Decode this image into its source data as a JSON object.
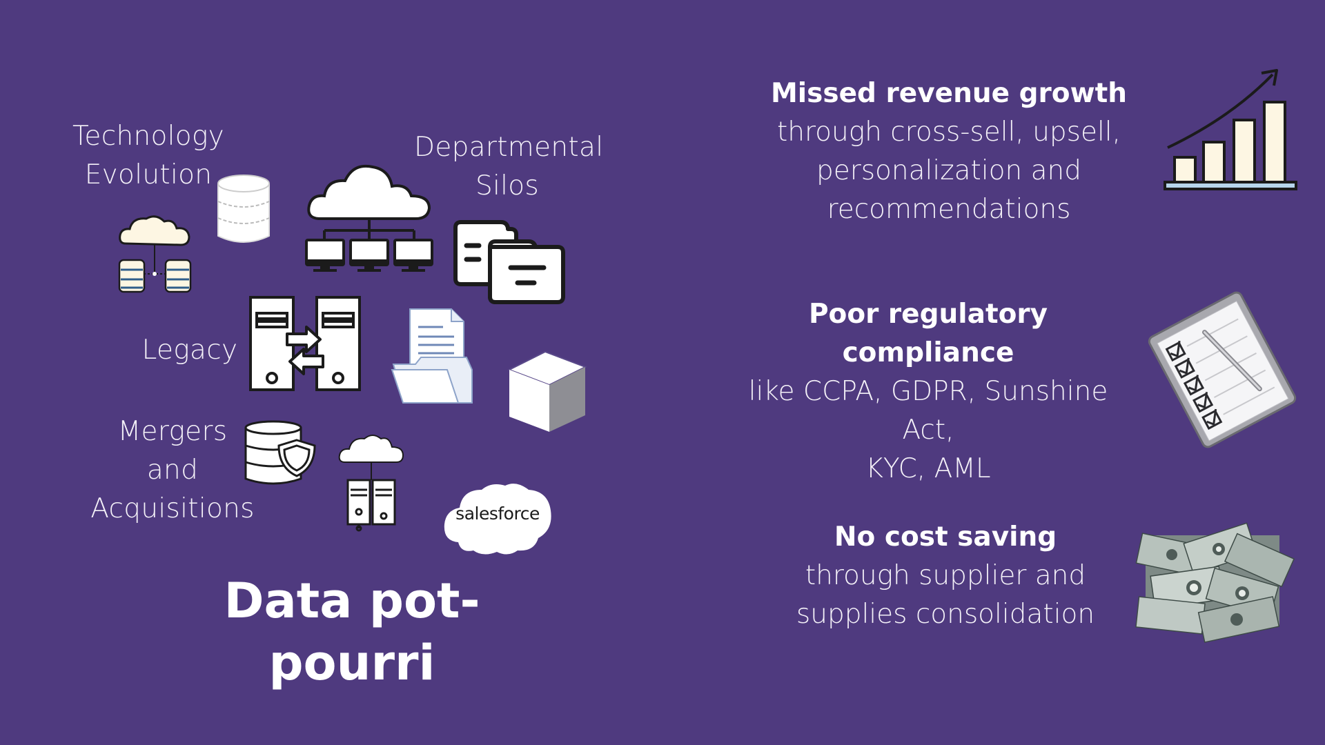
{
  "left": {
    "labels": {
      "technology_evolution": [
        "Technology",
        "Evolution"
      ],
      "departmental_silos": [
        "Departmental",
        "Silos"
      ],
      "legacy": [
        "Legacy"
      ],
      "mergers": [
        "Mergers",
        "and",
        "Acquisitions"
      ]
    },
    "salesforce_logo_text": "salesforce",
    "title": "Data pot-pourri"
  },
  "right": {
    "items": [
      {
        "heading": "Missed revenue growth",
        "body": [
          "through cross-sell,  upsell,",
          "personalization and",
          "recommendations"
        ],
        "icon": "bar-chart-growth-icon"
      },
      {
        "heading": "Poor regulatory compliance",
        "body": [
          "like CCPA, GDPR, Sunshine Act,",
          "KYC, AML"
        ],
        "icon": "clipboard-checklist-icon"
      },
      {
        "heading": "No cost saving",
        "body": [
          "through supplier and",
          "supplies consolidation"
        ],
        "icon": "money-bills-photo"
      }
    ]
  },
  "colors": {
    "background": "#4f3a7f",
    "text": "#ffffff",
    "icon_fill": "#ffffff",
    "icon_stroke": "#1b1b1b",
    "cream": "#fdf6e3",
    "salesforce_cloud": "#ffffff"
  }
}
